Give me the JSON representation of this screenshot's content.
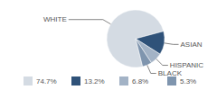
{
  "chart_data": {
    "type": "pie",
    "categories": [
      "WHITE",
      "ASIAN",
      "HISPANIC",
      "BLACK"
    ],
    "values": [
      74.7,
      13.2,
      6.8,
      5.3
    ],
    "value_labels": [
      "74.7%",
      "13.2%",
      "6.8%",
      "5.3%"
    ],
    "colors": [
      "#d4dbe3",
      "#2f5279",
      "#a3b3c6",
      "#7f95ae"
    ],
    "legend": "bottom"
  }
}
